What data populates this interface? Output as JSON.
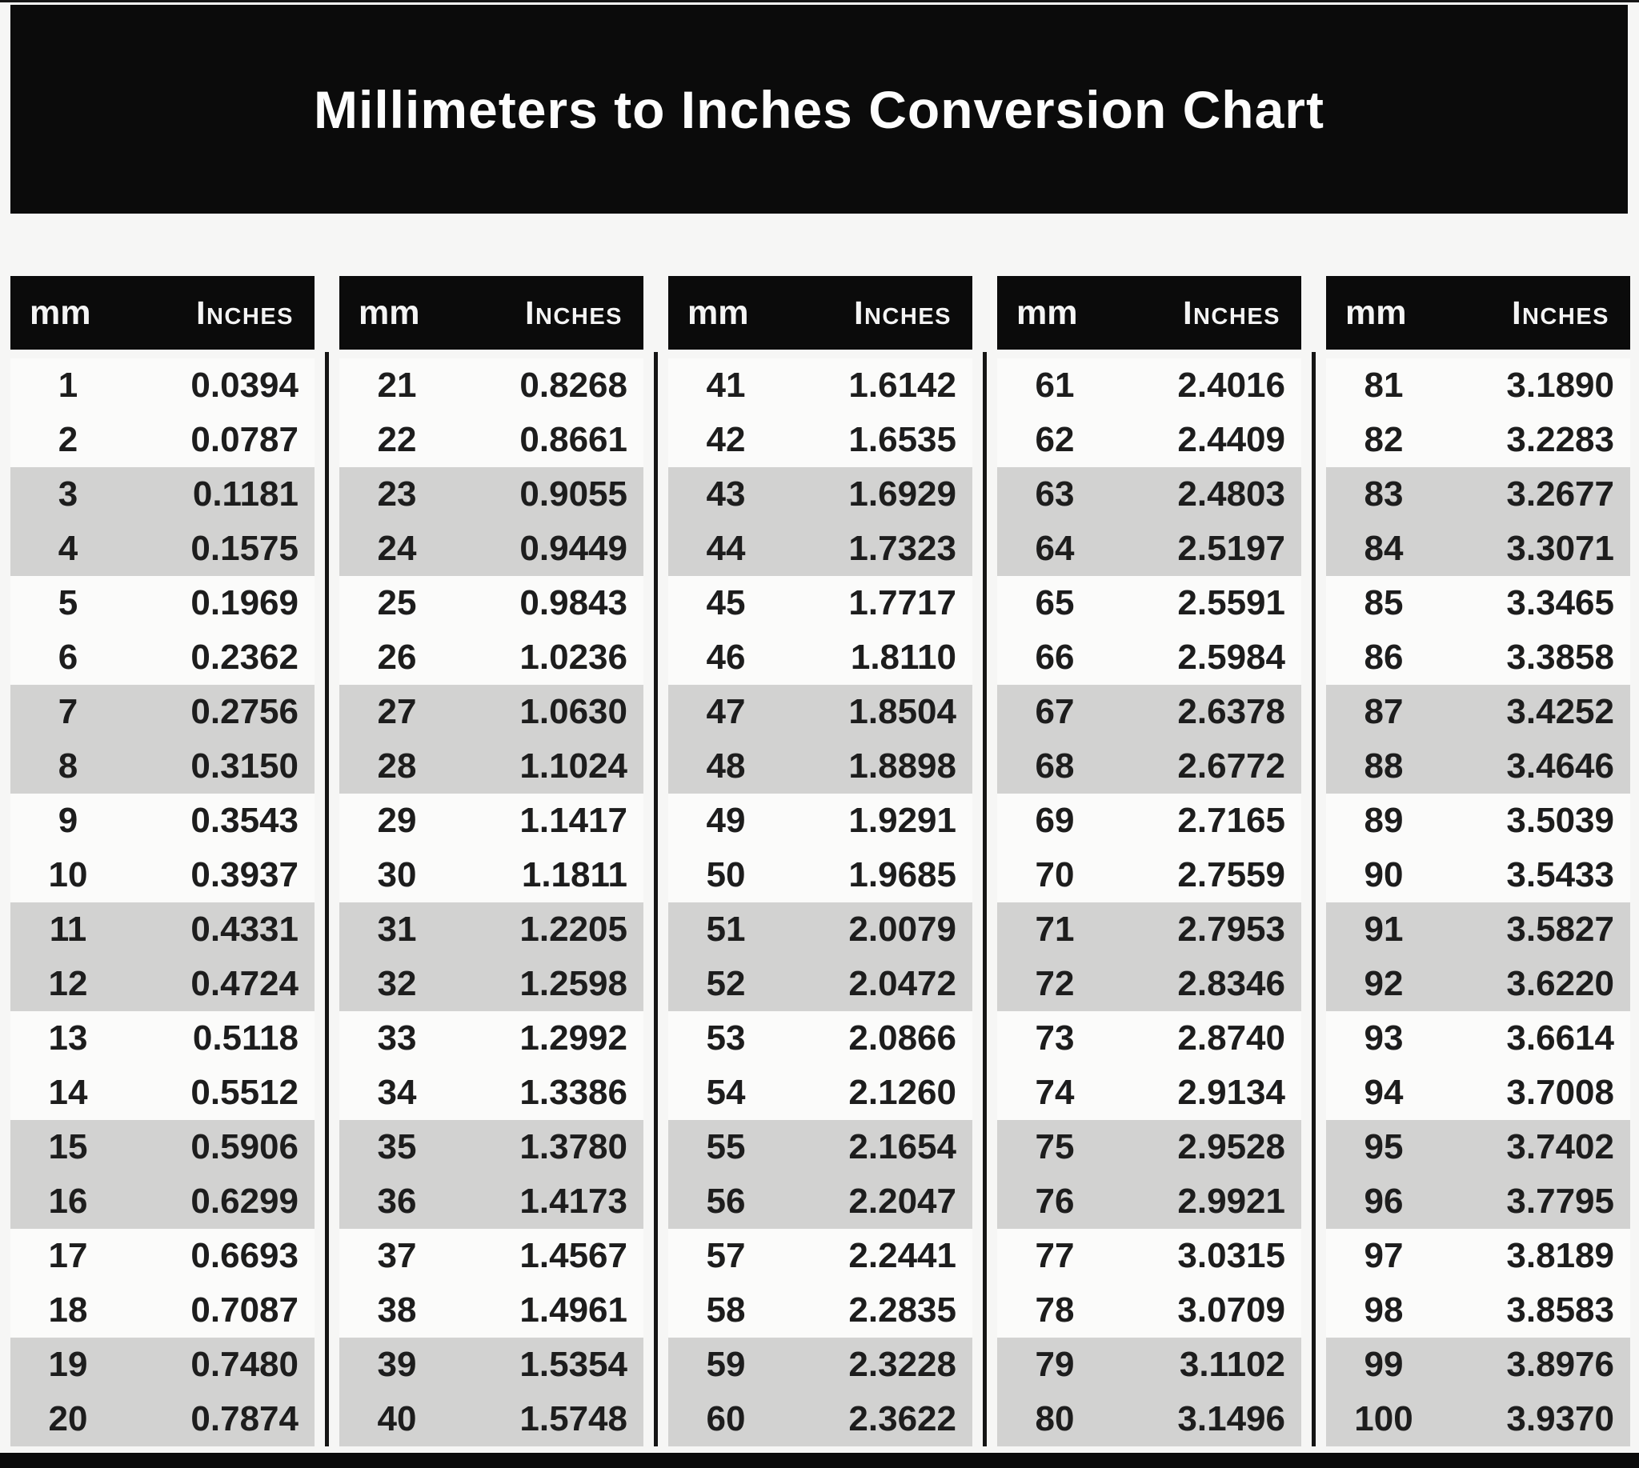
{
  "title": "Millimeters to Inches Conversion Chart",
  "colors": {
    "header_bg": "#0b0b0b",
    "header_text": "#f4f4f4",
    "row_shaded": "#d2d2d1",
    "row_plain": "#fbfbfa",
    "value_text": "#1d1d1d"
  },
  "chart_data": {
    "type": "table",
    "title": "Millimeters to Inches Conversion Chart",
    "column_headers": [
      "mm",
      "Inches"
    ],
    "shaded_row_pairs": "rows 3-4, 7-8, 11-12, 15-16, 19-20 of each 20-row group are gray",
    "groups": [
      {
        "rows": [
          [
            "1",
            "0.0394"
          ],
          [
            "2",
            "0.0787"
          ],
          [
            "3",
            "0.1181"
          ],
          [
            "4",
            "0.1575"
          ],
          [
            "5",
            "0.1969"
          ],
          [
            "6",
            "0.2362"
          ],
          [
            "7",
            "0.2756"
          ],
          [
            "8",
            "0.3150"
          ],
          [
            "9",
            "0.3543"
          ],
          [
            "10",
            "0.3937"
          ],
          [
            "11",
            "0.4331"
          ],
          [
            "12",
            "0.4724"
          ],
          [
            "13",
            "0.5118"
          ],
          [
            "14",
            "0.5512"
          ],
          [
            "15",
            "0.5906"
          ],
          [
            "16",
            "0.6299"
          ],
          [
            "17",
            "0.6693"
          ],
          [
            "18",
            "0.7087"
          ],
          [
            "19",
            "0.7480"
          ],
          [
            "20",
            "0.7874"
          ]
        ]
      },
      {
        "rows": [
          [
            "21",
            "0.8268"
          ],
          [
            "22",
            "0.8661"
          ],
          [
            "23",
            "0.9055"
          ],
          [
            "24",
            "0.9449"
          ],
          [
            "25",
            "0.9843"
          ],
          [
            "26",
            "1.0236"
          ],
          [
            "27",
            "1.0630"
          ],
          [
            "28",
            "1.1024"
          ],
          [
            "29",
            "1.1417"
          ],
          [
            "30",
            "1.1811"
          ],
          [
            "31",
            "1.2205"
          ],
          [
            "32",
            "1.2598"
          ],
          [
            "33",
            "1.2992"
          ],
          [
            "34",
            "1.3386"
          ],
          [
            "35",
            "1.3780"
          ],
          [
            "36",
            "1.4173"
          ],
          [
            "37",
            "1.4567"
          ],
          [
            "38",
            "1.4961"
          ],
          [
            "39",
            "1.5354"
          ],
          [
            "40",
            "1.5748"
          ]
        ]
      },
      {
        "rows": [
          [
            "41",
            "1.6142"
          ],
          [
            "42",
            "1.6535"
          ],
          [
            "43",
            "1.6929"
          ],
          [
            "44",
            "1.7323"
          ],
          [
            "45",
            "1.7717"
          ],
          [
            "46",
            "1.8110"
          ],
          [
            "47",
            "1.8504"
          ],
          [
            "48",
            "1.8898"
          ],
          [
            "49",
            "1.9291"
          ],
          [
            "50",
            "1.9685"
          ],
          [
            "51",
            "2.0079"
          ],
          [
            "52",
            "2.0472"
          ],
          [
            "53",
            "2.0866"
          ],
          [
            "54",
            "2.1260"
          ],
          [
            "55",
            "2.1654"
          ],
          [
            "56",
            "2.2047"
          ],
          [
            "57",
            "2.2441"
          ],
          [
            "58",
            "2.2835"
          ],
          [
            "59",
            "2.3228"
          ],
          [
            "60",
            "2.3622"
          ]
        ]
      },
      {
        "rows": [
          [
            "61",
            "2.4016"
          ],
          [
            "62",
            "2.4409"
          ],
          [
            "63",
            "2.4803"
          ],
          [
            "64",
            "2.5197"
          ],
          [
            "65",
            "2.5591"
          ],
          [
            "66",
            "2.5984"
          ],
          [
            "67",
            "2.6378"
          ],
          [
            "68",
            "2.6772"
          ],
          [
            "69",
            "2.7165"
          ],
          [
            "70",
            "2.7559"
          ],
          [
            "71",
            "2.7953"
          ],
          [
            "72",
            "2.8346"
          ],
          [
            "73",
            "2.8740"
          ],
          [
            "74",
            "2.9134"
          ],
          [
            "75",
            "2.9528"
          ],
          [
            "76",
            "2.9921"
          ],
          [
            "77",
            "3.0315"
          ],
          [
            "78",
            "3.0709"
          ],
          [
            "79",
            "3.1102"
          ],
          [
            "80",
            "3.1496"
          ]
        ]
      },
      {
        "rows": [
          [
            "81",
            "3.1890"
          ],
          [
            "82",
            "3.2283"
          ],
          [
            "83",
            "3.2677"
          ],
          [
            "84",
            "3.3071"
          ],
          [
            "85",
            "3.3465"
          ],
          [
            "86",
            "3.3858"
          ],
          [
            "87",
            "3.4252"
          ],
          [
            "88",
            "3.4646"
          ],
          [
            "89",
            "3.5039"
          ],
          [
            "90",
            "3.5433"
          ],
          [
            "91",
            "3.5827"
          ],
          [
            "92",
            "3.6220"
          ],
          [
            "93",
            "3.6614"
          ],
          [
            "94",
            "3.7008"
          ],
          [
            "95",
            "3.7402"
          ],
          [
            "96",
            "3.7795"
          ],
          [
            "97",
            "3.8189"
          ],
          [
            "98",
            "3.8583"
          ],
          [
            "99",
            "3.8976"
          ],
          [
            "100",
            "3.9370"
          ]
        ]
      }
    ]
  }
}
